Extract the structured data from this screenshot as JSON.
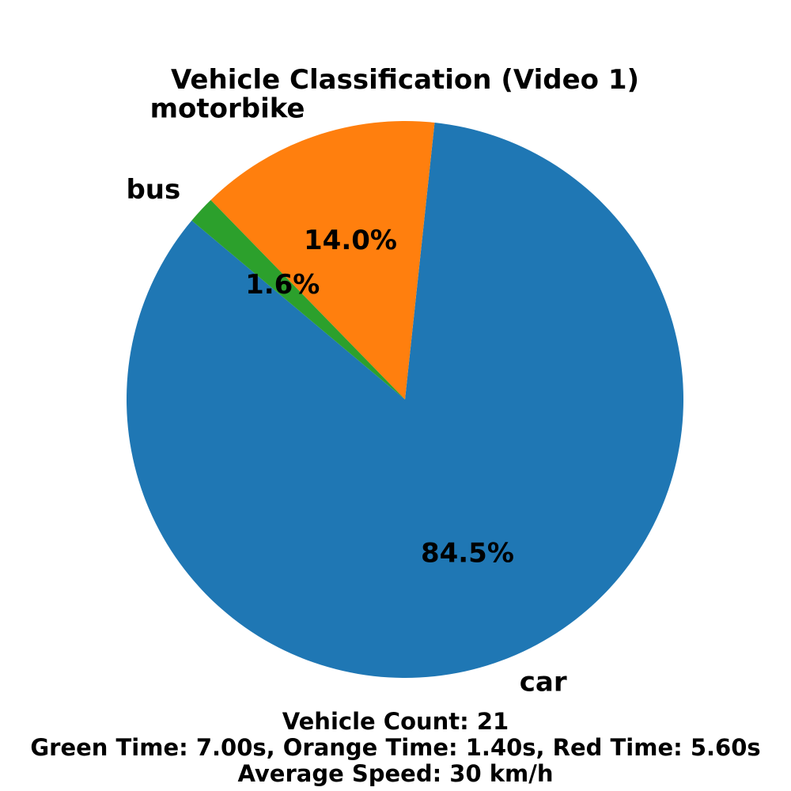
{
  "chart_data": {
    "type": "pie",
    "title": "Vehicle Classification (Video 1)",
    "categories": [
      "car",
      "motorbike",
      "bus"
    ],
    "values": [
      84.5,
      14.0,
      1.6
    ],
    "value_labels": [
      "84.5%",
      "14.0%",
      "1.6%"
    ],
    "colors": [
      "#1f77b4",
      "#ff7f0e",
      "#2ca02c"
    ],
    "start_angle_deg": 140,
    "direction": "counterclockwise",
    "legend": "none"
  },
  "footer": {
    "vehicle_count": "Vehicle Count: 21",
    "light_times": "Green Time: 7.00s, Orange Time: 1.40s, Red Time: 5.60s",
    "average_speed": "Average Speed: 30 km/h"
  }
}
